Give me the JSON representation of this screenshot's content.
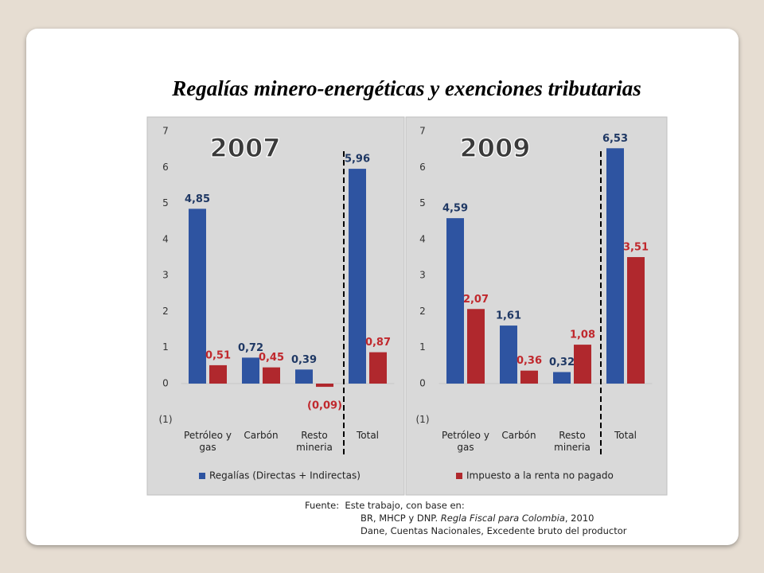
{
  "title": "Regalías minero-energéticas y exenciones tributarias",
  "chart_data": [
    {
      "type": "bar",
      "annotation": "2007",
      "categories": [
        "Petróleo y gas",
        "Carbón",
        "Resto mineria",
        "Total"
      ],
      "series": [
        {
          "name": "Regalías (Directas + Indirectas)",
          "color": "#2e54a1",
          "label_color": "#1f3864",
          "values": [
            4.85,
            0.72,
            0.39,
            5.96
          ],
          "value_labels": [
            "4,85",
            "0,72",
            "0,39",
            "5,96"
          ]
        },
        {
          "name": "Impuesto a la renta no pagado",
          "color": "#b0282d",
          "label_color": "#c0282d",
          "values": [
            0.51,
            0.45,
            -0.09,
            0.87
          ],
          "value_labels": [
            "0,51",
            "0,45",
            "(0,09)",
            "0,87"
          ]
        }
      ],
      "ylim": [
        -1,
        7
      ],
      "yticks": [
        {
          "value": -1,
          "label": "(1)"
        },
        0,
        1,
        2,
        3,
        4,
        5,
        6,
        7
      ],
      "grid": false
    },
    {
      "type": "bar",
      "annotation": "2009",
      "categories": [
        "Petróleo y gas",
        "Carbón",
        "Resto mineria",
        "Total"
      ],
      "series": [
        {
          "color": "#2e54a1",
          "label_color": "#1f3864",
          "values": [
            4.59,
            1.61,
            0.32,
            6.53
          ],
          "value_labels": [
            "4,59",
            "1,61",
            "0,32",
            "6,53"
          ]
        },
        {
          "color": "#b0282d",
          "label_color": "#c0282d",
          "values": [
            2.07,
            0.36,
            1.08,
            3.51
          ],
          "value_labels": [
            "2,07",
            "0,36",
            "1,08",
            "3,51"
          ]
        }
      ],
      "ylim": [
        -1,
        7
      ],
      "yticks": [
        {
          "value": -1,
          "label": "(1)"
        },
        0,
        1,
        2,
        3,
        4,
        5,
        6,
        7
      ],
      "grid": false
    }
  ],
  "source": {
    "label": "Fuente:",
    "line1": "Este trabajo, con base en:",
    "line2a": "BR, MHCP y DNP.",
    "line2b": "Regla Fiscal para Colombia",
    "line2c": ", 2010",
    "line3": "Dane, Cuentas Nacionales, Excedente bruto del productor"
  }
}
